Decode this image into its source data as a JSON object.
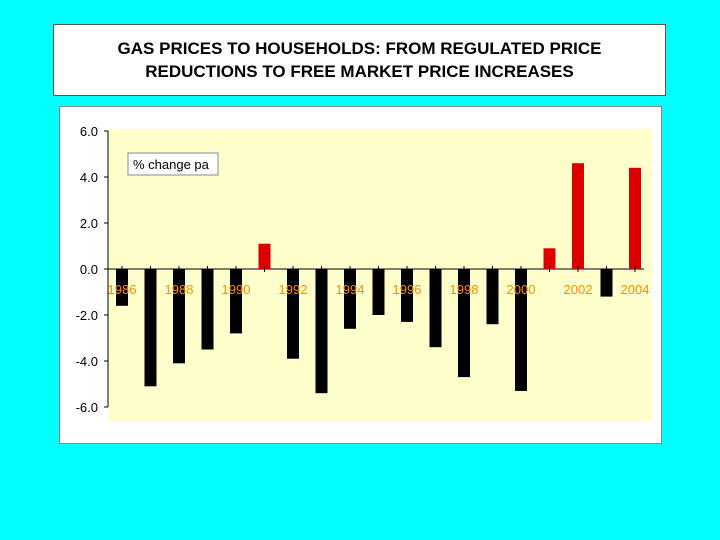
{
  "title": {
    "line1": "GAS PRICES TO HOUSEHOLDS: FROM REGULATED PRICE",
    "line2": "REDUCTIONS TO FREE MARKET PRICE INCREASES"
  },
  "colors": {
    "background": "#00ffff",
    "plot_area": "#ffffcc",
    "decrease_bar": "#000000",
    "increase_bar": "#dd0000",
    "year_labels": "#ff8c00"
  },
  "chart_data": {
    "type": "bar",
    "legend": "% change pa",
    "legend_placement": "top-left",
    "ylim": [
      -6.0,
      6.0
    ],
    "yticks": [
      "6.0",
      "4.0",
      "2.0",
      "0.0",
      "-2.0",
      "-4.0",
      "-6.0"
    ],
    "ytick_values": [
      6,
      4,
      2,
      0,
      -2,
      -4,
      -6
    ],
    "categories": [
      "1986",
      "1987",
      "1988",
      "1989",
      "1990",
      "1991",
      "1992",
      "1993",
      "1994",
      "1995",
      "1996",
      "1997",
      "1998",
      "1999",
      "2000",
      "2001",
      "2002",
      "2003",
      "2004"
    ],
    "category_labels_shown": [
      "1986",
      "",
      "1988",
      "",
      "1990",
      "",
      "1992",
      "",
      "1994",
      "",
      "1996",
      "",
      "1998",
      "",
      "2000",
      "",
      "2002",
      "",
      "2004"
    ],
    "values": [
      -1.6,
      -5.1,
      -4.1,
      -3.5,
      -2.8,
      1.1,
      -3.9,
      -5.4,
      -2.6,
      -2.0,
      -2.3,
      -3.4,
      -4.7,
      -2.4,
      -5.3,
      0.9,
      4.6,
      -1.2,
      4.4
    ],
    "grid": false
  }
}
